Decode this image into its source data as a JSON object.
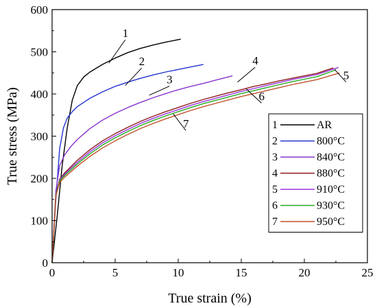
{
  "chart_data": {
    "type": "line",
    "xlabel": "True strain (%)",
    "ylabel": "True stress (MPa)",
    "xlim": [
      0,
      25
    ],
    "ylim": [
      0,
      600
    ],
    "xticks": [
      0,
      5,
      10,
      15,
      20,
      25
    ],
    "yticks": [
      0,
      100,
      200,
      300,
      400,
      500,
      600
    ],
    "legend_position": "right",
    "series": [
      {
        "name": "AR",
        "num": "1",
        "color": "#000000",
        "x": [
          0,
          0.4,
          0.8,
          1.2,
          1.6,
          2.0,
          2.5,
          3,
          4,
          5,
          6,
          7,
          8,
          9,
          10.2
        ],
        "y": [
          0,
          110,
          230,
          320,
          385,
          420,
          440,
          452,
          470,
          485,
          498,
          508,
          516,
          523,
          530
        ]
      },
      {
        "name": "800°C",
        "num": "2",
        "color": "#2233cc",
        "x": [
          0,
          0.3,
          0.6,
          0.9,
          1.2,
          1.6,
          2,
          3,
          4,
          5,
          6,
          7,
          8,
          9,
          10,
          11,
          12
        ],
        "y": [
          0,
          150,
          270,
          320,
          343,
          358,
          370,
          390,
          405,
          418,
          428,
          437,
          445,
          452,
          458,
          464,
          470
        ]
      },
      {
        "name": "840°C",
        "num": "3",
        "color": "#8833cc",
        "x": [
          0,
          0.3,
          0.6,
          1,
          1.5,
          2,
          3,
          4,
          5,
          6,
          7,
          8,
          9,
          10,
          11,
          12,
          13,
          14.3
        ],
        "y": [
          0,
          170,
          230,
          256,
          276,
          292,
          318,
          338,
          354,
          368,
          380,
          391,
          401,
          410,
          418,
          425,
          433,
          443
        ]
      },
      {
        "name": "880°C",
        "num": "4",
        "color": "#8b1a1a",
        "x": [
          0,
          0.3,
          0.6,
          1,
          2,
          3,
          4,
          5,
          6,
          7,
          8,
          9,
          10,
          11,
          12,
          13,
          14,
          15,
          16,
          17,
          18,
          19,
          20,
          21,
          22.3
        ],
        "y": [
          0,
          160,
          198,
          213,
          243,
          268,
          289,
          306,
          321,
          335,
          347,
          358,
          368,
          378,
          387,
          395,
          403,
          410,
          418,
          424,
          431,
          437,
          443,
          449,
          462
        ]
      },
      {
        "name": "910°C",
        "num": "5",
        "color": "#9933dd",
        "x": [
          0,
          0.3,
          0.6,
          1,
          2,
          3,
          4,
          5,
          6,
          7,
          8,
          9,
          10,
          11,
          12,
          13,
          14,
          15,
          16,
          17,
          18,
          19,
          20,
          21,
          22.7
        ],
        "y": [
          0,
          160,
          196,
          210,
          238,
          263,
          284,
          301,
          316,
          330,
          342,
          353,
          363,
          373,
          382,
          390,
          398,
          406,
          413,
          420,
          427,
          434,
          440,
          446,
          463
        ]
      },
      {
        "name": "930°C",
        "num": "6",
        "color": "#22aa22",
        "x": [
          0,
          0.3,
          0.6,
          1,
          2,
          3,
          4,
          5,
          6,
          7,
          8,
          9,
          10,
          11,
          12,
          13,
          14,
          15,
          16,
          17,
          18,
          19,
          20,
          21,
          22.5
        ],
        "y": [
          0,
          160,
          194,
          207,
          234,
          258,
          279,
          296,
          311,
          325,
          337,
          348,
          358,
          368,
          377,
          385,
          393,
          401,
          408,
          415,
          422,
          429,
          435,
          441,
          457
        ]
      },
      {
        "name": "950°C",
        "num": "7",
        "color": "#c0502a",
        "x": [
          0,
          0.3,
          0.6,
          1,
          2,
          3,
          4,
          5,
          6,
          7,
          8,
          9,
          10,
          11,
          12,
          13,
          14,
          15,
          16,
          17,
          18,
          19,
          20,
          21,
          22.8
        ],
        "y": [
          0,
          158,
          190,
          203,
          229,
          252,
          272,
          289,
          304,
          318,
          330,
          341,
          351,
          361,
          370,
          378,
          386,
          394,
          401,
          408,
          415,
          422,
          428,
          434,
          450
        ]
      }
    ],
    "annotations": [
      {
        "text": "1",
        "x": 5.8,
        "y": 535,
        "tx": 4.5,
        "ty": 473
      },
      {
        "text": "2",
        "x": 7.1,
        "y": 468,
        "tx": 5.8,
        "ty": 420
      },
      {
        "text": "3",
        "x": 9.3,
        "y": 425,
        "tx": 7.7,
        "ty": 397
      },
      {
        "text": "4",
        "x": 16.1,
        "y": 470,
        "tx": 14.7,
        "ty": 428
      },
      {
        "text": "5",
        "x": 23.3,
        "y": 435,
        "tx": 22.4,
        "ty": 458
      },
      {
        "text": "6",
        "x": 16.6,
        "y": 385,
        "tx": 15.4,
        "ty": 412
      },
      {
        "text": "7",
        "x": 10.6,
        "y": 320,
        "tx": 9.6,
        "ty": 353
      }
    ]
  }
}
